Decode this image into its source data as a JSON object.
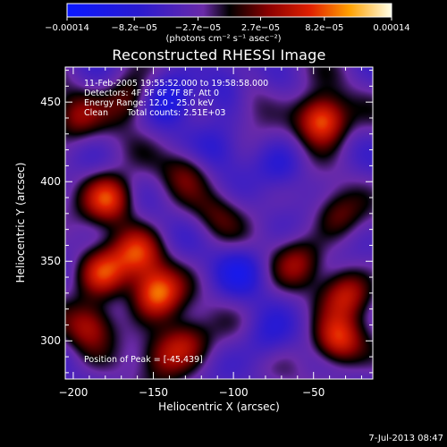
{
  "chart_data": {
    "type": "heatmap",
    "title": "Reconstructed RHESSI Image",
    "xlabel": "Heliocentric X (arcsec)",
    "ylabel": "Heliocentric Y (arcsec)",
    "xlim": [
      -205,
      -13
    ],
    "ylim": [
      276,
      472
    ],
    "x_ticks": [
      {
        "value": -200,
        "label": "−200"
      },
      {
        "value": -150,
        "label": "−150"
      },
      {
        "value": -100,
        "label": "−100"
      },
      {
        "value": -50,
        "label": "−50"
      }
    ],
    "y_ticks": [
      {
        "value": 300,
        "label": "300"
      },
      {
        "value": 350,
        "label": "350"
      },
      {
        "value": 400,
        "label": "400"
      },
      {
        "value": 450,
        "label": "450"
      }
    ],
    "colorbar": {
      "min": -0.00014,
      "max": 0.00014,
      "ticks": [
        {
          "value": -0.00014,
          "label": "−0.00014"
        },
        {
          "value": -8.2e-05,
          "label": "−8.2e−05"
        },
        {
          "value": -2.7e-05,
          "label": "−2.7e−05"
        },
        {
          "value": 2.7e-05,
          "label": "2.7e−05"
        },
        {
          "value": 8.2e-05,
          "label": "8.2e−05"
        },
        {
          "value": 0.00014,
          "label": "0.00014"
        }
      ],
      "units": "(photons cm⁻² s⁻¹ asec⁻²)"
    },
    "info_lines": [
      "11-Feb-2005 19:55:52.000 to 19:58:58.000",
      "Detectors: 4F 5F 6F 7F 8F, Att 0",
      "Energy Range: 12.0 - 25.0 keV",
      "Clean       Total counts: 2.51E+03"
    ],
    "peak_label": "Position of Peak = [-45,439]",
    "peak": {
      "x": -45,
      "y": 439
    },
    "sources": [
      {
        "x": -45,
        "y": 439,
        "amp": 0.00014
      },
      {
        "x": -148,
        "y": 330,
        "amp": 0.00012
      },
      {
        "x": -182,
        "y": 343,
        "amp": 0.0001
      },
      {
        "x": -178,
        "y": 390,
        "amp": 0.00011
      },
      {
        "x": -160,
        "y": 355,
        "amp": 9e-05
      },
      {
        "x": -190,
        "y": 310,
        "amp": 8e-05
      },
      {
        "x": -130,
        "y": 300,
        "amp": 7e-05
      },
      {
        "x": -35,
        "y": 300,
        "amp": 0.00011
      },
      {
        "x": -60,
        "y": 350,
        "amp": 6e-05
      },
      {
        "x": -30,
        "y": 330,
        "amp": 8e-05
      },
      {
        "x": -165,
        "y": 452,
        "amp": 7e-05
      },
      {
        "x": -200,
        "y": 440,
        "amp": 6e-05
      },
      {
        "x": -130,
        "y": 408,
        "amp": 5e-05
      },
      {
        "x": -110,
        "y": 380,
        "amp": 4e-05
      },
      {
        "x": -90,
        "y": 455,
        "amp": 3e-05
      },
      {
        "x": -145,
        "y": 290,
        "amp": 6e-05
      },
      {
        "x": -35,
        "y": 380,
        "amp": 5e-05
      }
    ],
    "negatives": [
      {
        "x": -140,
        "y": 452,
        "amp": -7e-05
      },
      {
        "x": -105,
        "y": 460,
        "amp": -5e-05
      },
      {
        "x": -95,
        "y": 345,
        "amp": -5e-05
      },
      {
        "x": -110,
        "y": 420,
        "amp": -4e-05
      },
      {
        "x": -70,
        "y": 410,
        "amp": -4e-05
      },
      {
        "x": -80,
        "y": 300,
        "amp": -4e-05
      }
    ]
  },
  "date_stamp": "7-Jul-2013 08:47"
}
